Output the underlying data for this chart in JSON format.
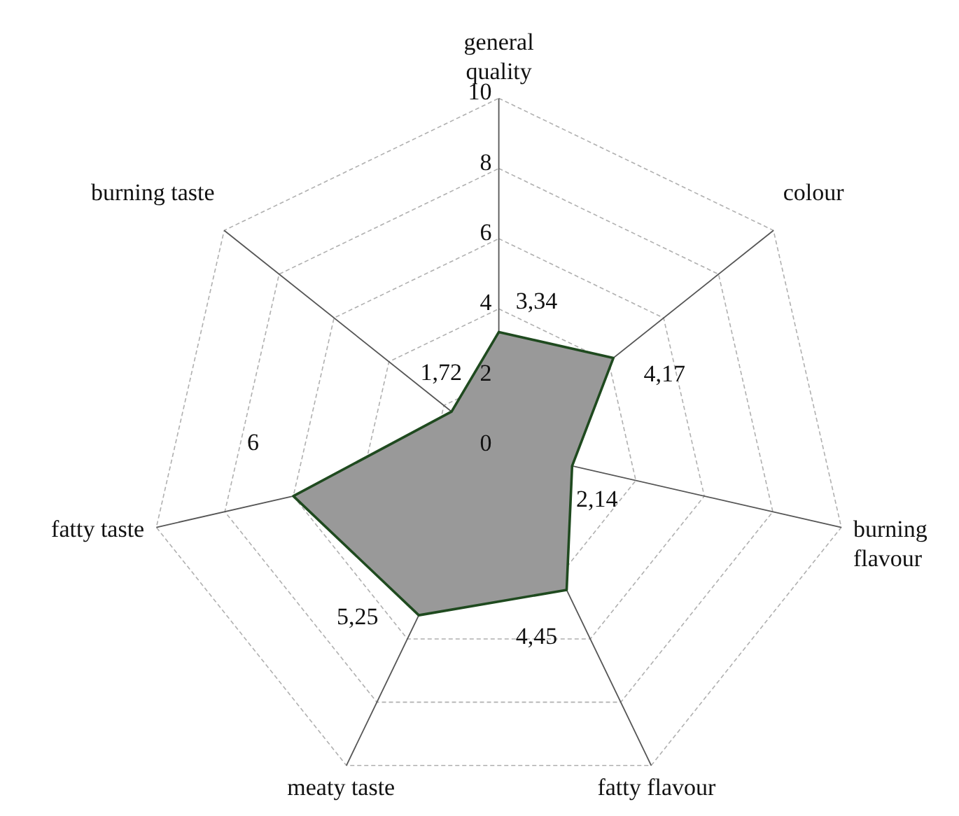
{
  "chart_data": {
    "type": "radar",
    "categories": [
      "general\nquality",
      "colour",
      "burning\nflavour",
      "fatty flavour",
      "meaty taste",
      "fatty taste",
      "burning taste"
    ],
    "series": [
      {
        "color": "#999999",
        "values": [
          3.34,
          4.17,
          2.14,
          4.45,
          5.25,
          6,
          1.72
        ],
        "value_labels": [
          "3,34",
          "4,17",
          "2,14",
          "4,45",
          "5,25",
          "6",
          "1,72"
        ]
      }
    ],
    "ylim": [
      0,
      10
    ],
    "yticks": [
      0,
      2,
      4,
      6,
      8,
      10
    ],
    "grid": true,
    "line_style": "solid"
  }
}
